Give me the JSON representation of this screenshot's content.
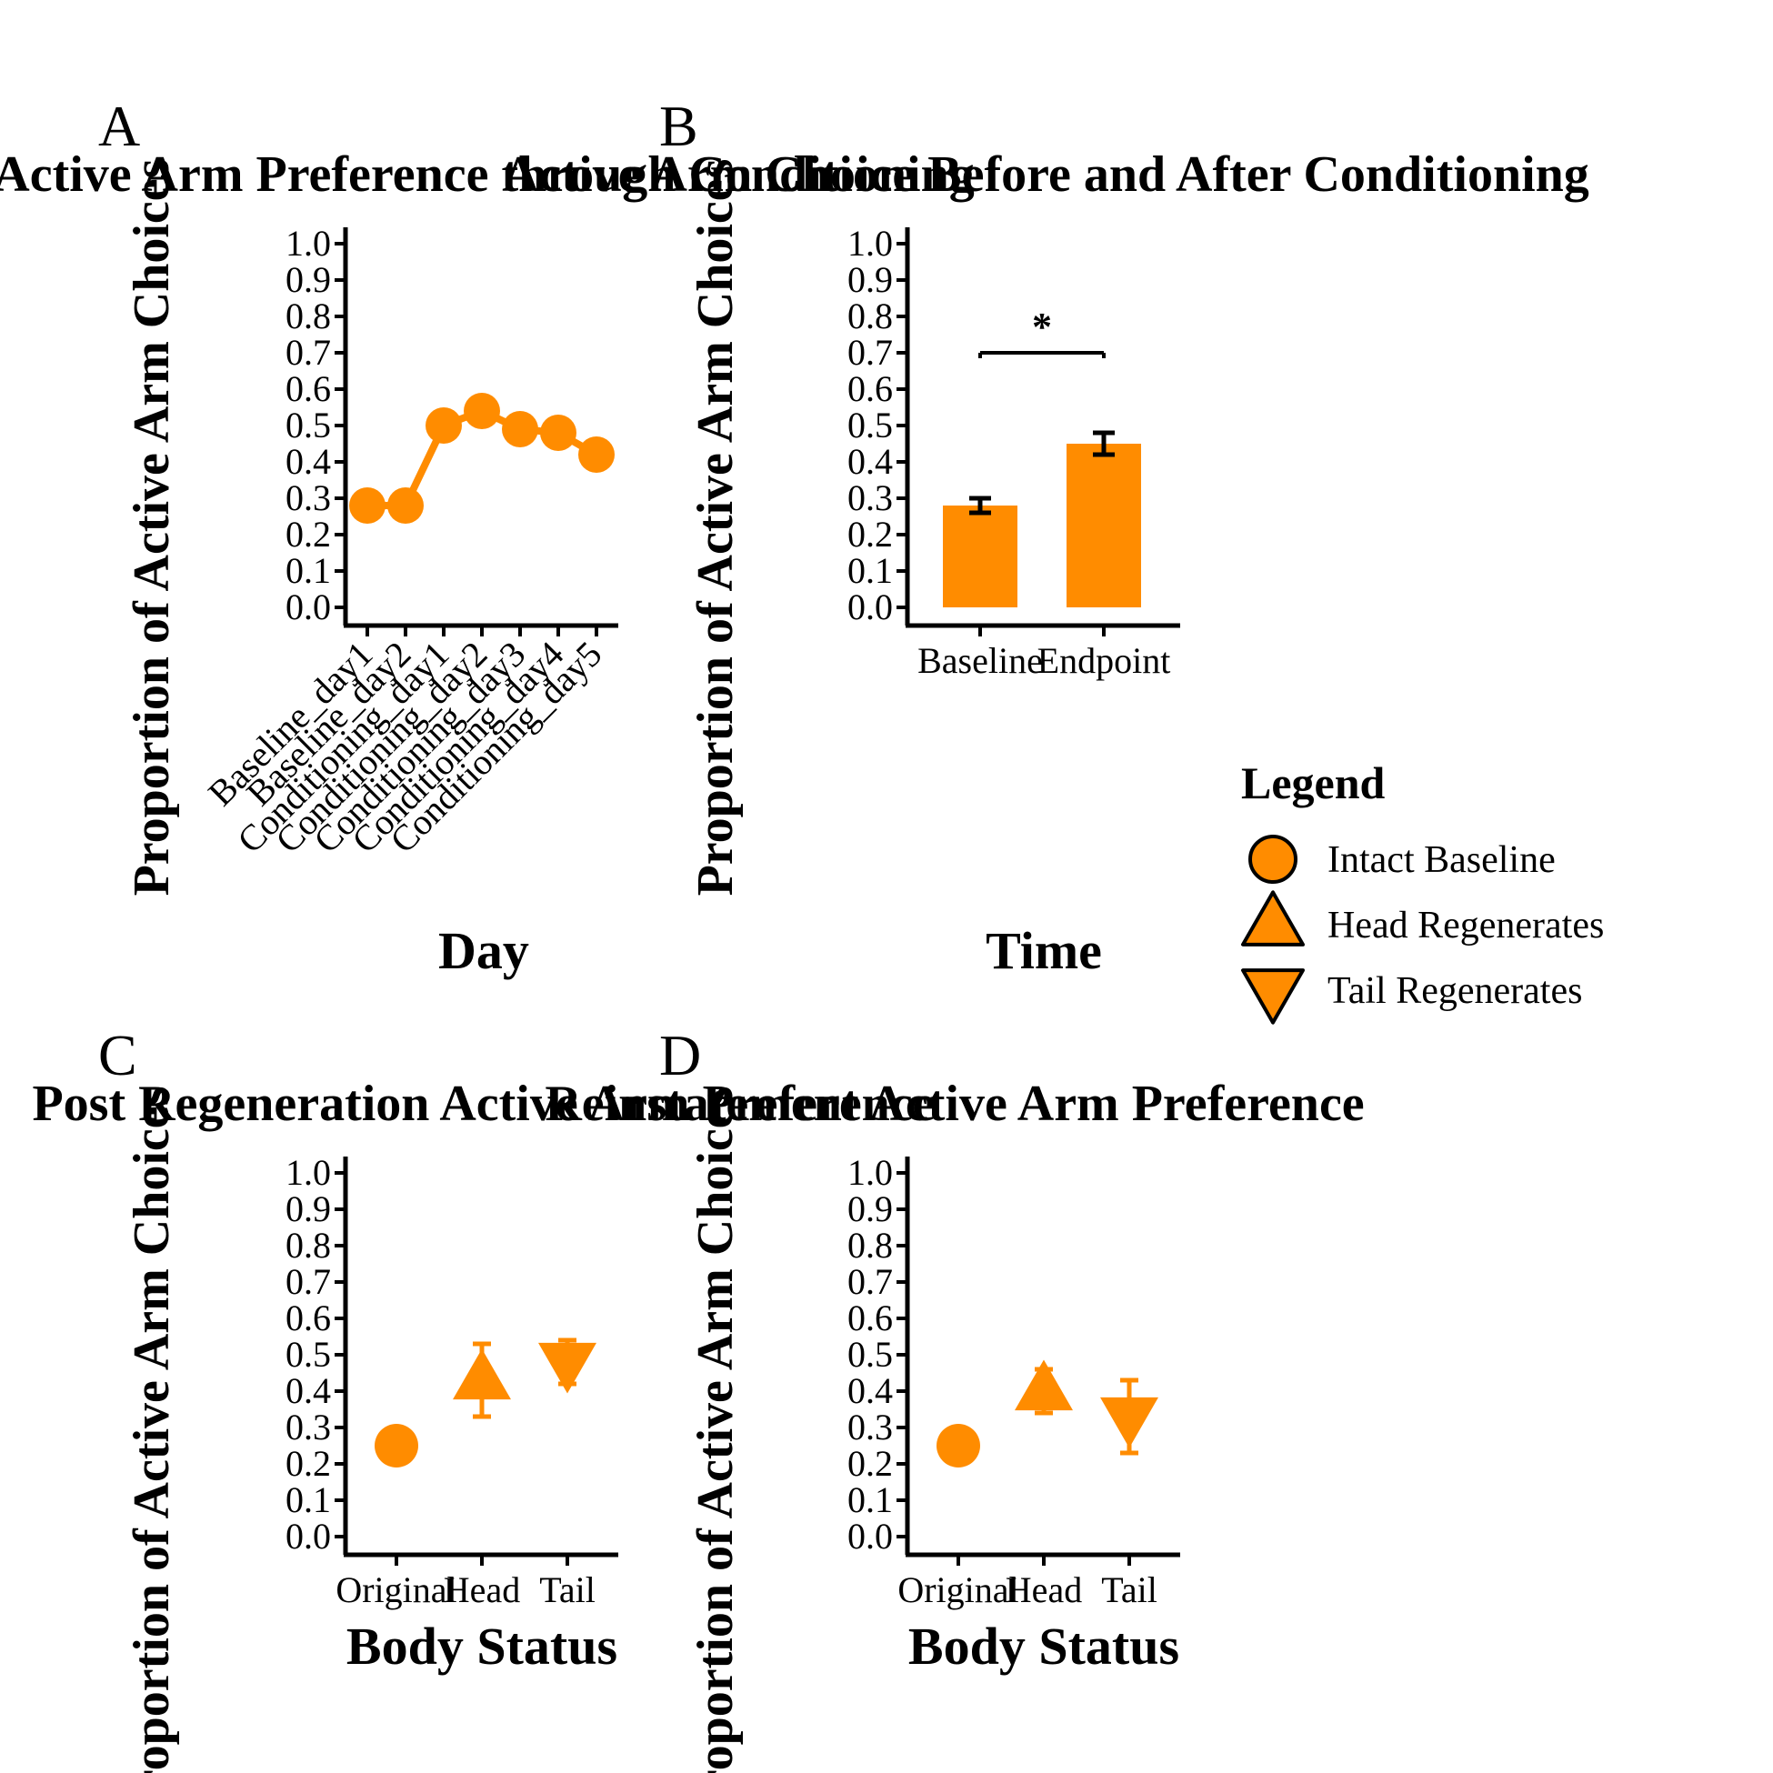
{
  "panels": {
    "A": {
      "label": "A",
      "title": "Active Arm Preference through Conditioning",
      "ylabel": "Proportion of Active Arm Choices",
      "xlabel": "Day"
    },
    "B": {
      "label": "B",
      "title": "Active Arm Choice Before and After Conditioning",
      "ylabel": "Proportion of Active Arm Choices",
      "xlabel": "Time",
      "significance": "*"
    },
    "C": {
      "label": "C",
      "title": "Post Regeneration Active Arm Preference",
      "ylabel": "Proportion of Active Arm Choices",
      "xlabel": "Body Status"
    },
    "D": {
      "label": "D",
      "title": "Reinstatement Active Arm Preference",
      "ylabel": "Proportion of Active Arm Choices",
      "xlabel": "Body Status"
    }
  },
  "legend": {
    "title": "Legend",
    "items": [
      {
        "label": "Intact Baseline",
        "shape": "circle"
      },
      {
        "label": "Head Regenerates",
        "shape": "triangle-up"
      },
      {
        "label": "Tail Regenerates",
        "shape": "triangle-down"
      }
    ]
  },
  "colors": {
    "accent": "#FF8C00",
    "ink": "#000000"
  },
  "chart_data": [
    {
      "panel": "A",
      "type": "line",
      "categories": [
        "Baseline_day1",
        "Baseline_day2",
        "Conditioning_day1",
        "Conditioning_day2",
        "Conditioning_day3",
        "Conditioning_day4",
        "Conditioning_day5"
      ],
      "values": [
        0.28,
        0.28,
        0.5,
        0.54,
        0.49,
        0.48,
        0.42
      ],
      "errors": [
        0.01,
        0.01,
        0.04,
        0.04,
        0.04,
        0.02,
        0.02
      ],
      "ylim": [
        0,
        1
      ],
      "yticks": [
        "0.0",
        "0.1",
        "0.2",
        "0.3",
        "0.4",
        "0.5",
        "0.6",
        "0.7",
        "0.8",
        "0.9",
        "1.0"
      ]
    },
    {
      "panel": "B",
      "type": "bar",
      "categories": [
        "Baseline",
        "Endpoint"
      ],
      "values": [
        0.28,
        0.45
      ],
      "errors": [
        0.02,
        0.03
      ],
      "ylim": [
        0,
        1
      ],
      "yticks": [
        "0.0",
        "0.1",
        "0.2",
        "0.3",
        "0.4",
        "0.5",
        "0.6",
        "0.7",
        "0.8",
        "0.9",
        "1.0"
      ],
      "significance_bracket": {
        "y": 0.7,
        "label": "*"
      }
    },
    {
      "panel": "C",
      "type": "scatter",
      "categories": [
        "Original",
        "Head",
        "Tail"
      ],
      "values": [
        0.25,
        0.43,
        0.48
      ],
      "errors": [
        0.0,
        0.1,
        0.06
      ],
      "shapes": [
        "circle",
        "triangle-up",
        "triangle-down"
      ],
      "ylim": [
        0,
        1
      ],
      "yticks": [
        "0.0",
        "0.1",
        "0.2",
        "0.3",
        "0.4",
        "0.5",
        "0.6",
        "0.7",
        "0.8",
        "0.9",
        "1.0"
      ]
    },
    {
      "panel": "D",
      "type": "scatter",
      "categories": [
        "Original",
        "Head",
        "Tail"
      ],
      "values": [
        0.25,
        0.4,
        0.33
      ],
      "errors": [
        0.0,
        0.06,
        0.1
      ],
      "shapes": [
        "circle",
        "triangle-up",
        "triangle-down"
      ],
      "ylim": [
        0,
        1
      ],
      "yticks": [
        "0.0",
        "0.1",
        "0.2",
        "0.3",
        "0.4",
        "0.5",
        "0.6",
        "0.7",
        "0.8",
        "0.9",
        "1.0"
      ]
    }
  ]
}
